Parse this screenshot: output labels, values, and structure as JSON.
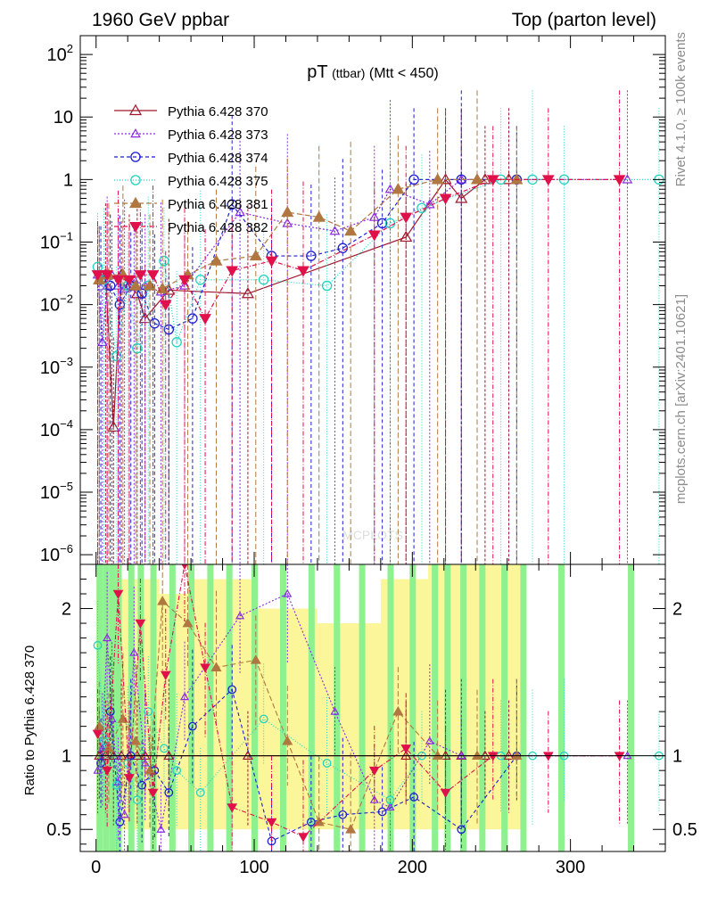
{
  "chart_data": {
    "type": "line",
    "header_left": "1960 GeV ppbar",
    "header_right": "Top (parton level)",
    "title_main": "pT",
    "title_sub": "(ttbar)",
    "title_cut": "(Mtt < 450)",
    "side_label_top": "Rivet 4.1.0, ≥ 100k events",
    "side_label_bottom": "mcplots.cern.ch [arXiv:2401.10621]",
    "watermark": "MCPLOTS",
    "ratio_ylabel": "Ratio to Pythia 6.428 370",
    "xlim": [
      -10,
      360
    ],
    "ylim_main": [
      7e-07,
      200
    ],
    "ylim_ratio": [
      0.35,
      2.3
    ],
    "x_ticks": [
      "0",
      "100",
      "200",
      "300"
    ],
    "x_tick_values": [
      0,
      100,
      200,
      300
    ],
    "y_ticks_main": [
      {
        "value": 100,
        "base": "10",
        "exp": "2"
      },
      {
        "value": 10,
        "base": "10",
        "exp": ""
      },
      {
        "value": 1,
        "base": "1",
        "exp": ""
      },
      {
        "value": 0.1,
        "base": "10",
        "exp": "−1"
      },
      {
        "value": 0.01,
        "base": "10",
        "exp": "−2"
      },
      {
        "value": 0.001,
        "base": "10",
        "exp": "−3"
      },
      {
        "value": 0.0001,
        "base": "10",
        "exp": "−4"
      },
      {
        "value": 1e-05,
        "base": "10",
        "exp": "−5"
      },
      {
        "value": 1e-06,
        "base": "10",
        "exp": "−6"
      }
    ],
    "y_ticks_ratio": [
      {
        "value": 2,
        "label": "2"
      },
      {
        "value": 1,
        "label": "1"
      },
      {
        "value": 0.5,
        "label": "0.5"
      }
    ],
    "series": [
      {
        "name": "Pythia 6.428 370",
        "color": "#a0162c",
        "dash": "",
        "marker": "tri-up-open",
        "x": [
          2,
          6,
          11,
          16,
          21,
          26,
          31,
          46,
          96,
          196,
          221,
          231,
          246,
          261
        ],
        "y": [
          0.025,
          0.03,
          0.00011,
          0.03,
          0.02,
          0.015,
          0.006,
          0.017,
          0.015,
          0.12,
          1,
          0.5,
          1,
          1
        ],
        "ratio": [
          1,
          1,
          1,
          1,
          1,
          1,
          1,
          1,
          1,
          1,
          1,
          1,
          1,
          1
        ]
      },
      {
        "name": "Pythia 6.428 373",
        "color": "#8a2be2",
        "dash": "2,2",
        "marker": "tri-up-open-small",
        "x": [
          1,
          4,
          7,
          10,
          14,
          18,
          24,
          31,
          41,
          56,
          91,
          121,
          151,
          176,
          186,
          211,
          231,
          336
        ],
        "y": [
          0.03,
          0.0025,
          0.02,
          0.03,
          0.02,
          0.018,
          0.025,
          0.02,
          0.016,
          0.02,
          0.3,
          0.2,
          0.15,
          0.25,
          0.7,
          0.4,
          1,
          1
        ],
        "ratio": [
          0.9,
          1.05,
          1.8,
          1.25,
          0.82,
          0.6,
          1.7,
          0.95,
          0.5,
          1.4,
          1.95,
          2.1,
          1.3,
          0.7,
          0.65,
          1.1,
          1,
          1
        ]
      },
      {
        "name": "Pythia 6.428 374",
        "color": "#1e1ed2",
        "dash": "4,3",
        "marker": "circle-open",
        "x": [
          3,
          9,
          15,
          22,
          29,
          37,
          46,
          61,
          86,
          111,
          136,
          156,
          181,
          201,
          231,
          266
        ],
        "y": [
          0.025,
          0.02,
          0.01,
          0.02,
          0.015,
          0.005,
          0.004,
          0.006,
          0.4,
          0.06,
          0.06,
          0.08,
          0.2,
          1,
          1,
          1
        ],
        "ratio": [
          0.95,
          1.3,
          0.55,
          1.0,
          0.8,
          0.9,
          0.75,
          1.2,
          1.45,
          0.42,
          0.55,
          0.6,
          0.62,
          0.72,
          0.5,
          1
        ]
      },
      {
        "name": "Pythia 6.428 375",
        "color": "#22d3c0",
        "dash": "1,2",
        "marker": "circle-open",
        "x": [
          1,
          5,
          13,
          20,
          26,
          33,
          43,
          51,
          66,
          106,
          146,
          186,
          206,
          256,
          276,
          296,
          356
        ],
        "y": [
          0.04,
          0.025,
          0.0015,
          0.02,
          0.002,
          0.02,
          0.05,
          0.0025,
          0.025,
          0.025,
          0.02,
          0.2,
          0.35,
          1,
          1,
          1,
          1
        ],
        "ratio": [
          1.75,
          1.1,
          0.8,
          0.95,
          0.7,
          1.3,
          1.05,
          0.9,
          0.75,
          1.25,
          0.95,
          0.7,
          1.0,
          1,
          1,
          1,
          1
        ]
      },
      {
        "name": "Pythia 6.428 381",
        "color": "#b07840",
        "dash": "6,3",
        "marker": "tri-up-filled",
        "x": [
          2,
          8,
          17,
          25,
          34,
          42,
          58,
          76,
          101,
          121,
          141,
          161,
          191,
          216,
          241,
          266
        ],
        "y": [
          0.025,
          0.03,
          0.03,
          0.02,
          0.02,
          0.018,
          0.03,
          0.05,
          0.06,
          0.3,
          0.25,
          0.15,
          0.7,
          1,
          1,
          1
        ],
        "ratio": [
          1.2,
          1.05,
          1.25,
          1.1,
          0.9,
          2.05,
          1.9,
          1.6,
          1.65,
          1.1,
          0.55,
          0.5,
          1.3,
          1.0,
          1,
          1
        ]
      },
      {
        "name": "Pythia 6.428 382",
        "color": "#e0104a",
        "dash": "5,2,1,2",
        "marker": "tri-down-filled",
        "x": [
          1,
          7,
          14,
          21,
          28,
          36,
          44,
          56,
          69,
          86,
          111,
          131,
          176,
          196,
          221,
          251,
          286,
          331
        ],
        "y": [
          0.03,
          0.03,
          0.025,
          0.025,
          0.03,
          0.03,
          0.01,
          0.025,
          0.006,
          0.035,
          0.05,
          0.035,
          0.13,
          0.25,
          0.5,
          1,
          1,
          1
        ],
        "ratio": [
          1.15,
          0.9,
          2.1,
          0.85,
          1.9,
          0.75,
          1.55,
          2.3,
          1.6,
          0.65,
          0.55,
          0.45,
          0.9,
          1.05,
          0.75,
          1,
          1,
          1
        ]
      }
    ],
    "band_yellow": [
      [
        0,
        2.2
      ],
      [
        20,
        2.2
      ],
      [
        40,
        2.1
      ],
      [
        60,
        2.2
      ],
      [
        100,
        2.0
      ],
      [
        140,
        1.9
      ],
      [
        180,
        2.2
      ],
      [
        210,
        2.3
      ],
      [
        270,
        2.3
      ]
    ],
    "band_green_x": [
      2,
      6,
      10,
      14,
      22,
      28,
      36,
      48,
      60,
      72,
      84,
      100,
      118,
      136,
      152,
      168,
      186,
      200,
      214,
      222,
      232,
      244,
      258,
      270,
      294,
      338
    ]
  }
}
